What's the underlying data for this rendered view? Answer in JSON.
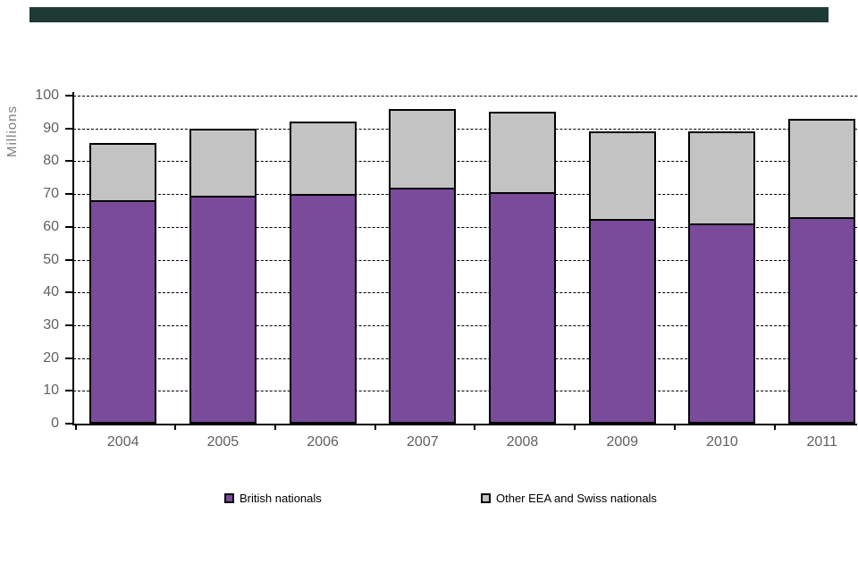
{
  "header_band": {
    "color": "#1d3a34"
  },
  "chart_data": {
    "type": "bar",
    "stacked": true,
    "title": "",
    "xlabel": "",
    "ylabel": "Millions",
    "categories": [
      "2004",
      "2005",
      "2006",
      "2007",
      "2008",
      "2009",
      "2010",
      "2011"
    ],
    "series": [
      {
        "name": "British nationals",
        "color": "#7a4a9b",
        "values": [
          68,
          69.5,
          70,
          72,
          70.5,
          62.5,
          61,
          63
        ]
      },
      {
        "name": "Other EEA and Swiss nationals",
        "color": "#c3c3c3",
        "values": [
          17.5,
          20.5,
          22,
          24,
          24.5,
          26.5,
          28,
          30
        ]
      }
    ],
    "totals": [
      85.5,
      90,
      92,
      96,
      95,
      89,
      89,
      93
    ],
    "ylim": [
      0,
      100
    ],
    "ytick_step": 10,
    "grid": "horizontal-dashed",
    "legend_position": "bottom"
  }
}
